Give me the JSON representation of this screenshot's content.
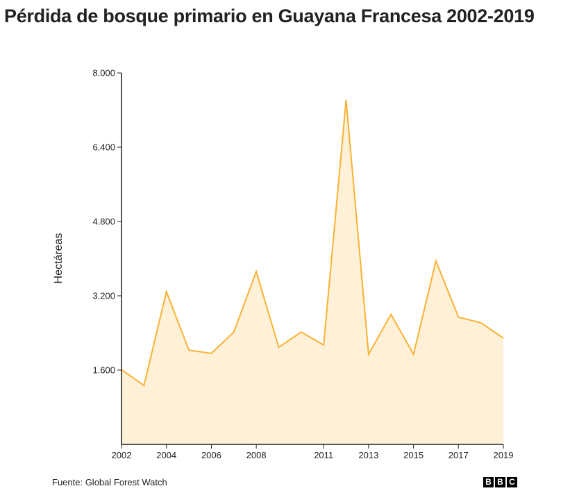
{
  "title": "Pérdida de bosque primario en Guayana Francesa 2002-2019",
  "source": "Fuente: Global Forest Watch",
  "logo": [
    "B",
    "B",
    "C"
  ],
  "colors": {
    "line": "#f9b233",
    "fill": "#fff0d8",
    "axis": "#222222"
  },
  "chart_data": {
    "type": "area",
    "title": "Pérdida de bosque primario en Guayana Francesa 2002-2019",
    "xlabel": "",
    "ylabel": "Hectáreas",
    "x": [
      2002,
      2003,
      2004,
      2005,
      2006,
      2007,
      2008,
      2009,
      2010,
      2011,
      2012,
      2013,
      2014,
      2015,
      2016,
      2017,
      2018,
      2019
    ],
    "series": [
      {
        "name": "Pérdida de bosque primario",
        "values": [
          1610,
          1270,
          3290,
          2030,
          1960,
          2420,
          3720,
          2090,
          2420,
          2140,
          7420,
          1940,
          2800,
          1940,
          3950,
          2740,
          2620,
          2290
        ]
      }
    ],
    "ylim": [
      0,
      8000
    ],
    "xlim": [
      2002,
      2019
    ],
    "yticks": [
      1600,
      3200,
      4800,
      6400,
      8000
    ],
    "ytick_labels": [
      "1.600",
      "3.200",
      "4.800",
      "6.400",
      "8.000"
    ],
    "xticks": [
      2002,
      2004,
      2006,
      2008,
      2011,
      2013,
      2015,
      2017,
      2019
    ],
    "xtick_labels": [
      "2002",
      "2004",
      "2006",
      "2008",
      "2011",
      "2013",
      "2015",
      "2017",
      "2019"
    ],
    "grid": false,
    "legend": "none"
  }
}
